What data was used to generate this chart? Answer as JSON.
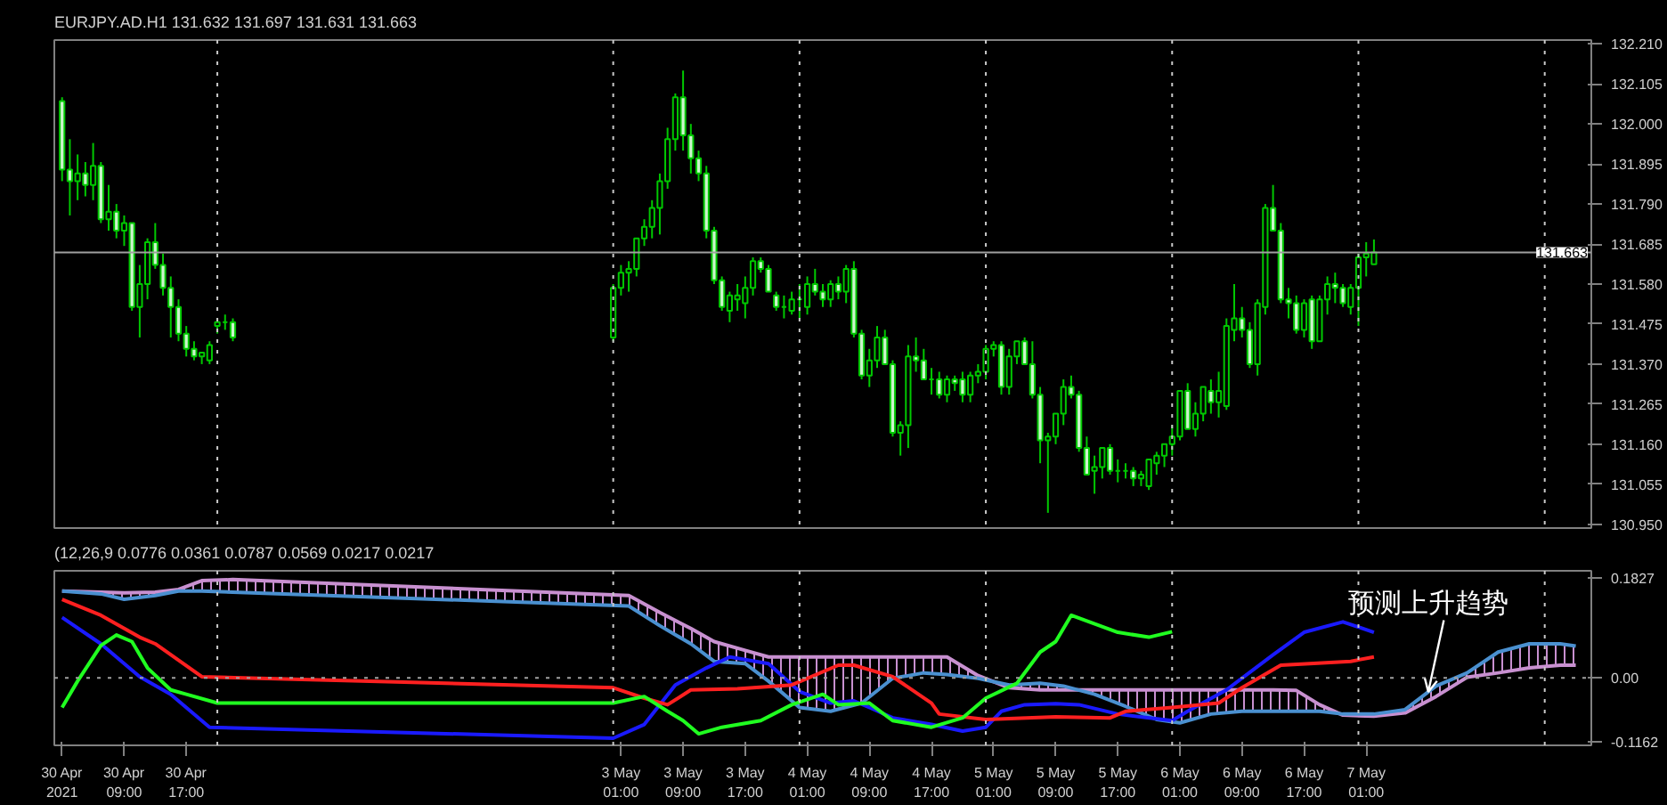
{
  "chart_data": [
    {
      "type": "candlestick",
      "title": "EURJPY.AD.H1 131.632 131.697 131.631 131.663",
      "color": "#00c800",
      "x": [
        "2021-04-30T01:00",
        "2021-04-30T02:00",
        "2021-04-30T03:00",
        "2021-04-30T04:00",
        "2021-04-30T05:00",
        "2021-04-30T06:00",
        "2021-04-30T07:00",
        "2021-04-30T08:00",
        "2021-04-30T09:00",
        "2021-04-30T10:00",
        "2021-04-30T11:00",
        "2021-04-30T12:00",
        "2021-04-30T13:00",
        "2021-04-30T14:00",
        "2021-04-30T15:00",
        "2021-04-30T16:00",
        "2021-04-30T17:00",
        "2021-04-30T18:00",
        "2021-04-30T19:00",
        "2021-04-30T20:00",
        "2021-04-30T21:00",
        "2021-04-30T22:00",
        "2021-04-30T23:00",
        "2021-05-03T00:00",
        "2021-05-03T01:00",
        "2021-05-03T02:00",
        "2021-05-03T03:00",
        "2021-05-03T04:00",
        "2021-05-03T05:00",
        "2021-05-03T06:00",
        "2021-05-03T07:00",
        "2021-05-03T08:00",
        "2021-05-03T09:00",
        "2021-05-03T10:00",
        "2021-05-03T11:00",
        "2021-05-03T12:00",
        "2021-05-03T13:00",
        "2021-05-03T14:00",
        "2021-05-03T15:00",
        "2021-05-03T16:00",
        "2021-05-03T17:00",
        "2021-05-03T18:00",
        "2021-05-03T19:00",
        "2021-05-03T20:00",
        "2021-05-03T21:00",
        "2021-05-03T22:00",
        "2021-05-03T23:00",
        "2021-05-04T00:00",
        "2021-05-04T01:00",
        "2021-05-04T02:00",
        "2021-05-04T03:00",
        "2021-05-04T04:00",
        "2021-05-04T05:00",
        "2021-05-04T06:00",
        "2021-05-04T07:00",
        "2021-05-04T08:00",
        "2021-05-04T09:00",
        "2021-05-04T10:00",
        "2021-05-04T11:00",
        "2021-05-04T12:00",
        "2021-05-04T13:00",
        "2021-05-04T14:00",
        "2021-05-04T15:00",
        "2021-05-04T16:00",
        "2021-05-04T17:00",
        "2021-05-04T18:00",
        "2021-05-04T19:00",
        "2021-05-04T20:00",
        "2021-05-04T21:00",
        "2021-05-04T22:00",
        "2021-05-04T23:00",
        "2021-05-05T00:00",
        "2021-05-05T01:00",
        "2021-05-05T02:00",
        "2021-05-05T03:00",
        "2021-05-05T04:00",
        "2021-05-05T05:00",
        "2021-05-05T06:00",
        "2021-05-05T07:00",
        "2021-05-05T08:00",
        "2021-05-05T09:00",
        "2021-05-05T10:00",
        "2021-05-05T11:00",
        "2021-05-05T12:00",
        "2021-05-05T13:00",
        "2021-05-05T14:00",
        "2021-05-05T15:00",
        "2021-05-05T16:00",
        "2021-05-05T17:00",
        "2021-05-05T18:00",
        "2021-05-05T19:00",
        "2021-05-05T20:00",
        "2021-05-05T21:00",
        "2021-05-05T22:00",
        "2021-05-05T23:00",
        "2021-05-06T00:00",
        "2021-05-06T01:00",
        "2021-05-06T02:00",
        "2021-05-06T03:00",
        "2021-05-06T04:00",
        "2021-05-06T05:00",
        "2021-05-06T06:00",
        "2021-05-06T07:00",
        "2021-05-06T08:00",
        "2021-05-06T09:00",
        "2021-05-06T10:00",
        "2021-05-06T11:00",
        "2021-05-06T12:00",
        "2021-05-06T13:00",
        "2021-05-06T14:00",
        "2021-05-06T15:00",
        "2021-05-06T16:00",
        "2021-05-06T17:00",
        "2021-05-06T18:00",
        "2021-05-06T19:00",
        "2021-05-06T20:00",
        "2021-05-06T21:00",
        "2021-05-06T22:00",
        "2021-05-06T23:00",
        "2021-05-07T00:00",
        "2021-05-07T01:00",
        "2021-05-07T02:00"
      ],
      "ohlc": [
        [
          132.06,
          132.07,
          131.85,
          131.88
        ],
        [
          131.88,
          131.96,
          131.76,
          131.85
        ],
        [
          131.85,
          131.92,
          131.8,
          131.87
        ],
        [
          131.87,
          131.9,
          131.81,
          131.84
        ],
        [
          131.84,
          131.95,
          131.8,
          131.89
        ],
        [
          131.89,
          131.9,
          131.74,
          131.75
        ],
        [
          131.75,
          131.84,
          131.72,
          131.77
        ],
        [
          131.77,
          131.79,
          131.7,
          131.72
        ],
        [
          131.72,
          131.76,
          131.68,
          131.74
        ],
        [
          131.74,
          131.74,
          131.51,
          131.52
        ],
        [
          131.52,
          131.63,
          131.44,
          131.58
        ],
        [
          131.58,
          131.7,
          131.54,
          131.69
        ],
        [
          131.69,
          131.74,
          131.62,
          131.63
        ],
        [
          131.63,
          131.66,
          131.55,
          131.57
        ],
        [
          131.57,
          131.6,
          131.44,
          131.52
        ],
        [
          131.52,
          131.54,
          131.43,
          131.45
        ],
        [
          131.45,
          131.47,
          131.39,
          131.41
        ],
        [
          131.41,
          131.43,
          131.38,
          131.39
        ],
        [
          131.39,
          131.4,
          131.37,
          131.4
        ],
        [
          131.38,
          131.43,
          131.37,
          131.42
        ],
        [
          131.47,
          131.49,
          131.45,
          131.48
        ],
        [
          131.48,
          131.5,
          131.46,
          131.48
        ],
        [
          131.48,
          131.49,
          131.43,
          131.44
        ],
        [
          131.44,
          131.58,
          131.43,
          131.57
        ],
        [
          131.57,
          131.63,
          131.55,
          131.61
        ],
        [
          131.61,
          131.64,
          131.56,
          131.62
        ],
        [
          131.62,
          131.7,
          131.6,
          131.7
        ],
        [
          131.7,
          131.75,
          131.68,
          131.73
        ],
        [
          131.73,
          131.8,
          131.7,
          131.78
        ],
        [
          131.78,
          131.87,
          131.71,
          131.85
        ],
        [
          131.85,
          131.99,
          131.83,
          131.96
        ],
        [
          131.96,
          132.08,
          131.93,
          132.07
        ],
        [
          132.07,
          132.14,
          131.93,
          131.97
        ],
        [
          131.97,
          132.0,
          131.87,
          131.91
        ],
        [
          131.91,
          131.93,
          131.85,
          131.87
        ],
        [
          131.87,
          131.89,
          131.7,
          131.72
        ],
        [
          131.72,
          131.73,
          131.58,
          131.59
        ],
        [
          131.59,
          131.6,
          131.51,
          131.52
        ],
        [
          131.51,
          131.56,
          131.48,
          131.55
        ],
        [
          131.54,
          131.58,
          131.51,
          131.55
        ],
        [
          131.53,
          131.6,
          131.49,
          131.57
        ],
        [
          131.57,
          131.65,
          131.55,
          131.64
        ],
        [
          131.64,
          131.65,
          131.61,
          131.62
        ],
        [
          131.62,
          131.63,
          131.56,
          131.56
        ],
        [
          131.55,
          131.56,
          131.51,
          131.52
        ],
        [
          131.52,
          131.55,
          131.49,
          131.52
        ],
        [
          131.51,
          131.56,
          131.5,
          131.54
        ],
        [
          131.54,
          131.58,
          131.49,
          131.54
        ],
        [
          131.52,
          131.6,
          131.5,
          131.58
        ],
        [
          131.58,
          131.62,
          131.55,
          131.56
        ],
        [
          131.56,
          131.58,
          131.52,
          131.54
        ],
        [
          131.54,
          131.59,
          131.52,
          131.58
        ],
        [
          131.58,
          131.6,
          131.54,
          131.56
        ],
        [
          131.56,
          131.63,
          131.53,
          131.62
        ],
        [
          131.62,
          131.64,
          131.44,
          131.45
        ],
        [
          131.45,
          131.46,
          131.33,
          131.34
        ],
        [
          131.34,
          131.41,
          131.31,
          131.38
        ],
        [
          131.38,
          131.47,
          131.36,
          131.44
        ],
        [
          131.44,
          131.46,
          131.37,
          131.37
        ],
        [
          131.37,
          131.38,
          131.18,
          131.19
        ],
        [
          131.19,
          131.22,
          131.13,
          131.21
        ],
        [
          131.21,
          131.42,
          131.15,
          131.39
        ],
        [
          131.39,
          131.44,
          131.35,
          131.38
        ],
        [
          131.38,
          131.41,
          131.33,
          131.33
        ],
        [
          131.33,
          131.36,
          131.29,
          131.33
        ],
        [
          131.33,
          131.35,
          131.28,
          131.29
        ],
        [
          131.29,
          131.34,
          131.27,
          131.33
        ],
        [
          131.33,
          131.34,
          131.3,
          131.32
        ],
        [
          131.33,
          131.35,
          131.27,
          131.29
        ],
        [
          131.29,
          131.35,
          131.27,
          131.34
        ],
        [
          131.34,
          131.37,
          131.32,
          131.35
        ],
        [
          131.35,
          131.42,
          131.33,
          131.41
        ],
        [
          131.41,
          131.43,
          131.39,
          131.42
        ],
        [
          131.42,
          131.43,
          131.29,
          131.31
        ],
        [
          131.31,
          131.41,
          131.29,
          131.39
        ],
        [
          131.39,
          131.43,
          131.37,
          131.43
        ],
        [
          131.43,
          131.44,
          131.37,
          131.37
        ],
        [
          131.37,
          131.43,
          131.28,
          131.29
        ],
        [
          131.29,
          131.31,
          131.11,
          131.17
        ],
        [
          131.17,
          131.19,
          130.98,
          131.18
        ],
        [
          131.18,
          131.24,
          131.16,
          131.24
        ],
        [
          131.24,
          131.33,
          131.21,
          131.31
        ],
        [
          131.31,
          131.34,
          131.28,
          131.29
        ],
        [
          131.29,
          131.3,
          131.14,
          131.15
        ],
        [
          131.15,
          131.18,
          131.08,
          131.08
        ],
        [
          131.09,
          131.13,
          131.03,
          131.1
        ],
        [
          131.1,
          131.15,
          131.07,
          131.15
        ],
        [
          131.15,
          131.16,
          131.08,
          131.09
        ],
        [
          131.09,
          131.12,
          131.06,
          131.09
        ],
        [
          131.09,
          131.11,
          131.07,
          131.09
        ],
        [
          131.09,
          131.1,
          131.05,
          131.07
        ],
        [
          131.07,
          131.09,
          131.05,
          131.08
        ],
        [
          131.05,
          131.12,
          131.04,
          131.12
        ],
        [
          131.11,
          131.14,
          131.08,
          131.13
        ],
        [
          131.13,
          131.16,
          131.1,
          131.16
        ],
        [
          131.16,
          131.21,
          131.13,
          131.18
        ],
        [
          131.18,
          131.3,
          131.17,
          131.3
        ],
        [
          131.3,
          131.32,
          131.2,
          131.2
        ],
        [
          131.2,
          131.27,
          131.18,
          131.24
        ],
        [
          131.24,
          131.31,
          131.22,
          131.31
        ],
        [
          131.3,
          131.33,
          131.24,
          131.27
        ],
        [
          131.27,
          131.35,
          131.23,
          131.3
        ],
        [
          131.26,
          131.49,
          131.25,
          131.47
        ],
        [
          131.46,
          131.58,
          131.43,
          131.49
        ],
        [
          131.49,
          131.52,
          131.44,
          131.46
        ],
        [
          131.46,
          131.48,
          131.36,
          131.37
        ],
        [
          131.37,
          131.54,
          131.34,
          131.53
        ],
        [
          131.52,
          131.79,
          131.5,
          131.78
        ],
        [
          131.78,
          131.84,
          131.72,
          131.72
        ],
        [
          131.72,
          131.74,
          131.53,
          131.54
        ],
        [
          131.54,
          131.57,
          131.49,
          131.53
        ],
        [
          131.53,
          131.55,
          131.45,
          131.46
        ],
        [
          131.46,
          131.54,
          131.44,
          131.53
        ],
        [
          131.54,
          131.55,
          131.41,
          131.43
        ],
        [
          131.43,
          131.55,
          131.43,
          131.54
        ],
        [
          131.54,
          131.6,
          131.5,
          131.58
        ],
        [
          131.58,
          131.61,
          131.53,
          131.57
        ],
        [
          131.57,
          131.58,
          131.52,
          131.53
        ],
        [
          131.52,
          131.58,
          131.5,
          131.57
        ],
        [
          131.57,
          131.66,
          131.47,
          131.65
        ],
        [
          131.65,
          131.69,
          131.6,
          131.66
        ],
        [
          131.632,
          131.697,
          131.631,
          131.663
        ]
      ],
      "xlim": [
        "2021-04-30T00:00",
        "2021-05-08T06:00"
      ],
      "ylim": [
        130.94,
        132.22
      ],
      "yticks": [
        {
          "value": 130.95,
          "label": "130.950"
        },
        {
          "value": 131.055,
          "label": "131.055"
        },
        {
          "value": 131.16,
          "label": "131.160"
        },
        {
          "value": 131.265,
          "label": "131.265"
        },
        {
          "value": 131.37,
          "label": "131.370"
        },
        {
          "value": 131.475,
          "label": "131.475"
        },
        {
          "value": 131.58,
          "label": "131.580"
        },
        {
          "value": 131.685,
          "label": "131.685"
        },
        {
          "value": 131.79,
          "label": "131.790"
        },
        {
          "value": 131.895,
          "label": "131.895"
        },
        {
          "value": 132.0,
          "label": "132.000"
        },
        {
          "value": 132.105,
          "label": "132.105"
        },
        {
          "value": 132.21,
          "label": "132.210"
        }
      ],
      "tick_labels": "y",
      "ref_lines": [
        {
          "axis": "y",
          "value": 131.663,
          "label": "131.663",
          "color": "#a0a0a0",
          "line_style": "solid"
        },
        {
          "axis": "x",
          "value": "2021-04-30T21:00",
          "color": "#c8c8c8",
          "line_style": "dotted"
        },
        {
          "axis": "x",
          "value": "2021-05-03T00:00",
          "color": "#c8c8c8",
          "line_style": "dotted"
        },
        {
          "axis": "x",
          "value": "2021-05-04T00:00",
          "color": "#c8c8c8",
          "line_style": "dotted"
        },
        {
          "axis": "x",
          "value": "2021-05-05T00:00",
          "color": "#c8c8c8",
          "line_style": "dotted"
        },
        {
          "axis": "x",
          "value": "2021-05-06T00:00",
          "color": "#c8c8c8",
          "line_style": "dotted"
        },
        {
          "axis": "x",
          "value": "2021-05-07T00:00",
          "color": "#c8c8c8",
          "line_style": "dotted"
        },
        {
          "axis": "x",
          "value": "2021-05-08T00:00",
          "color": "#c8c8c8",
          "line_style": "dotted"
        }
      ]
    },
    {
      "type": "line",
      "annotations": [
        {
          "text": "预测上升趋势",
          "x": "2021-05-07T09:00",
          "y": -0.035
        }
      ],
      "title": "(12,26,9 0.0776 0.0361 0.0787 0.0569 0.0217 0.0217",
      "xlim": [
        "2021-04-30T00:00",
        "2021-05-08T06:00"
      ],
      "ylim": [
        -0.123,
        0.195
      ],
      "xticks": [
        {
          "value": "2021-04-30T01:00",
          "label": "30 Apr 2021"
        },
        {
          "value": "2021-04-30T09:00",
          "label": "30 Apr 09:00"
        },
        {
          "value": "2021-04-30T17:00",
          "label": "30 Apr 17:00"
        },
        {
          "value": "2021-05-03T01:00",
          "label": "3 May 01:00"
        },
        {
          "value": "2021-05-03T09:00",
          "label": "3 May 09:00"
        },
        {
          "value": "2021-05-03T17:00",
          "label": "3 May 17:00"
        },
        {
          "value": "2021-05-04T01:00",
          "label": "4 May 01:00"
        },
        {
          "value": "2021-05-04T09:00",
          "label": "4 May 09:00"
        },
        {
          "value": "2021-05-04T17:00",
          "label": "4 May 17:00"
        },
        {
          "value": "2021-05-05T01:00",
          "label": "5 May 01:00"
        },
        {
          "value": "2021-05-05T09:00",
          "label": "5 May 09:00"
        },
        {
          "value": "2021-05-05T17:00",
          "label": "5 May 17:00"
        },
        {
          "value": "2021-05-06T01:00",
          "label": "6 May 01:00"
        },
        {
          "value": "2021-05-06T09:00",
          "label": "6 May 09:00"
        },
        {
          "value": "2021-05-06T17:00",
          "label": "6 May 17:00"
        },
        {
          "value": "2021-05-07T01:00",
          "label": "7 May 01:00"
        }
      ],
      "yticks": [
        {
          "value": 0.1827,
          "label": "0.1827"
        },
        {
          "value": 0,
          "label": "0.00"
        },
        {
          "value": -0.1162,
          "label": "-0.1162"
        }
      ],
      "ref_lines": [
        {
          "axis": "y",
          "value": 0,
          "color": "#a0a0a0",
          "line_style": "dotted"
        },
        {
          "axis": "x",
          "value": "2021-04-30T21:00",
          "color": "#c8c8c8",
          "line_style": "dotted"
        },
        {
          "axis": "x",
          "value": "2021-05-03T00:00",
          "color": "#c8c8c8",
          "line_style": "dotted"
        },
        {
          "axis": "x",
          "value": "2021-05-04T00:00",
          "color": "#c8c8c8",
          "line_style": "dotted"
        },
        {
          "axis": "x",
          "value": "2021-05-05T00:00",
          "color": "#c8c8c8",
          "line_style": "dotted"
        },
        {
          "axis": "x",
          "value": "2021-05-06T00:00",
          "color": "#c8c8c8",
          "line_style": "dotted"
        },
        {
          "axis": "x",
          "value": "2021-05-07T00:00",
          "color": "#c8c8c8",
          "line_style": "dotted"
        },
        {
          "axis": "x",
          "value": "2021-05-08T00:00",
          "color": "#c8c8c8",
          "line_style": "dotted"
        }
      ],
      "series": [
        {
          "type": "line",
          "color": "#c890d0",
          "x": [
            "2021-04-30T01:00",
            "2021-04-30T06:00",
            "2021-04-30T09:00",
            "2021-04-30T13:00",
            "2021-04-30T16:00",
            "2021-04-30T19:00",
            "2021-04-30T23:00",
            "2021-05-03T02:00",
            "2021-05-03T06:00",
            "2021-05-03T10:00",
            "2021-05-03T13:00",
            "2021-05-03T17:00",
            "2021-05-03T20:00",
            "2021-05-04T00:00",
            "2021-05-04T04:00",
            "2021-05-04T08:00",
            "2021-05-04T12:00",
            "2021-05-04T16:00",
            "2021-05-04T19:00",
            "2021-05-04T23:00",
            "2021-05-05T03:00",
            "2021-05-05T07:00",
            "2021-05-05T10:00",
            "2021-05-05T14:00",
            "2021-05-05T18:00",
            "2021-05-05T22:00",
            "2021-05-06T01:00",
            "2021-05-06T05:00",
            "2021-05-06T09:00",
            "2021-05-06T13:00",
            "2021-05-06T16:00",
            "2021-05-06T19:00",
            "2021-05-06T22:00",
            "2021-05-07T02:00",
            "2021-05-07T06:00",
            "2021-05-07T10:00",
            "2021-05-07T14:00",
            "2021-05-07T18:00",
            "2021-05-07T22:00",
            "2021-05-08T02:00",
            "2021-05-08T04:00"
          ],
          "values": [
            0.158,
            0.156,
            0.155,
            0.156,
            0.161,
            0.177,
            0.179,
            0.15,
            0.119,
            0.09,
            0.066,
            0.05,
            0.038,
            0.038,
            0.038,
            0.038,
            0.038,
            0.038,
            0.038,
            0.004,
            -0.018,
            -0.022,
            -0.022,
            -0.022,
            -0.022,
            -0.022,
            -0.022,
            -0.022,
            -0.022,
            -0.022,
            -0.023,
            -0.049,
            -0.068,
            -0.07,
            -0.064,
            -0.034,
            0.001,
            0.009,
            0.018,
            0.023,
            0.023
          ],
          "lower": [
            0.158,
            0.153,
            0.143,
            0.15,
            0.158,
            0.158,
            0.156,
            0.131,
            0.095,
            0.062,
            0.03,
            0.026,
            -0.006,
            -0.054,
            -0.061,
            -0.046,
            -0.001,
            0.009,
            0.006,
            -0.001,
            -0.013,
            -0.01,
            -0.015,
            -0.03,
            -0.052,
            -0.076,
            -0.082,
            -0.066,
            -0.061,
            -0.061,
            -0.061,
            -0.061,
            -0.066,
            -0.066,
            -0.058,
            -0.015,
            0.009,
            0.047,
            0.062,
            0.062,
            0.058
          ],
          "upper": [
            0.158,
            0.156,
            0.155,
            0.156,
            0.161,
            0.177,
            0.179,
            0.15,
            0.119,
            0.09,
            0.066,
            0.05,
            0.038,
            0.038,
            0.038,
            0.038,
            0.038,
            0.038,
            0.038,
            0.004,
            -0.018,
            -0.022,
            -0.022,
            -0.022,
            -0.022,
            -0.022,
            -0.022,
            -0.022,
            -0.022,
            -0.022,
            -0.023,
            -0.049,
            -0.068,
            -0.07,
            -0.064,
            -0.034,
            0.001,
            0.009,
            0.018,
            0.023,
            0.023
          ]
        },
        {
          "type": "line",
          "color": "#4a90d0",
          "x": [
            "2021-04-30T01:00",
            "2021-04-30T06:00",
            "2021-04-30T09:00",
            "2021-04-30T13:00",
            "2021-04-30T16:00",
            "2021-04-30T19:00",
            "2021-04-30T23:00",
            "2021-05-03T02:00",
            "2021-05-03T06:00",
            "2021-05-03T10:00",
            "2021-05-03T13:00",
            "2021-05-03T17:00",
            "2021-05-03T20:00",
            "2021-05-04T00:00",
            "2021-05-04T04:00",
            "2021-05-04T08:00",
            "2021-05-04T12:00",
            "2021-05-04T16:00",
            "2021-05-04T19:00",
            "2021-05-04T23:00",
            "2021-05-05T03:00",
            "2021-05-05T07:00",
            "2021-05-05T10:00",
            "2021-05-05T14:00",
            "2021-05-05T18:00",
            "2021-05-05T22:00",
            "2021-05-06T01:00",
            "2021-05-06T05:00",
            "2021-05-06T09:00",
            "2021-05-06T13:00",
            "2021-05-06T16:00",
            "2021-05-06T19:00",
            "2021-05-06T22:00",
            "2021-05-07T02:00",
            "2021-05-07T06:00",
            "2021-05-07T10:00",
            "2021-05-07T14:00",
            "2021-05-07T18:00",
            "2021-05-07T22:00",
            "2021-05-08T02:00",
            "2021-05-08T04:00"
          ],
          "values": [
            0.158,
            0.153,
            0.143,
            0.15,
            0.158,
            0.158,
            0.156,
            0.131,
            0.095,
            0.062,
            0.03,
            0.026,
            -0.006,
            -0.054,
            -0.061,
            -0.046,
            -0.001,
            0.009,
            0.006,
            -0.001,
            -0.013,
            -0.01,
            -0.015,
            -0.03,
            -0.052,
            -0.076,
            -0.082,
            -0.066,
            -0.061,
            -0.061,
            -0.061,
            -0.061,
            -0.066,
            -0.066,
            -0.058,
            -0.015,
            0.009,
            0.047,
            0.062,
            0.062,
            0.058
          ]
        },
        {
          "type": "line",
          "color": "#1a1aff",
          "x": [
            "2021-04-30T01:00",
            "2021-04-30T06:00",
            "2021-04-30T11:00",
            "2021-04-30T15:00",
            "2021-04-30T20:00",
            "2021-05-03T00:00",
            "2021-05-03T04:00",
            "2021-05-03T08:00",
            "2021-05-03T12:00",
            "2021-05-03T15:00",
            "2021-05-03T20:00",
            "2021-05-04T00:00",
            "2021-05-04T04:00",
            "2021-05-04T07:00",
            "2021-05-04T09:00",
            "2021-05-04T12:00",
            "2021-05-04T17:00",
            "2021-05-04T21:00",
            "2021-05-05T00:00",
            "2021-05-05T02:00",
            "2021-05-05T05:00",
            "2021-05-05T09:00",
            "2021-05-05T12:00",
            "2021-05-05T17:00",
            "2021-05-06T00:00",
            "2021-05-06T02:00",
            "2021-05-06T07:00",
            "2021-05-06T13:00",
            "2021-05-06T17:00",
            "2021-05-06T22:00",
            "2021-05-07T02:00"
          ],
          "values": [
            0.11,
            0.062,
            0.002,
            -0.03,
            -0.09,
            -0.11,
            -0.085,
            -0.013,
            0.018,
            0.038,
            0.026,
            -0.025,
            -0.046,
            -0.042,
            -0.054,
            -0.073,
            -0.085,
            -0.097,
            -0.09,
            -0.061,
            -0.049,
            -0.047,
            -0.049,
            -0.066,
            -0.078,
            -0.061,
            -0.022,
            0.042,
            0.083,
            0.102,
            0.083
          ]
        },
        {
          "type": "line",
          "color": "#ff2020",
          "x": [
            "2021-04-30T01:00",
            "2021-04-30T06:00",
            "2021-04-30T11:00",
            "2021-04-30T13:00",
            "2021-04-30T19:00",
            "2021-05-03T00:00",
            "2021-05-03T04:00",
            "2021-05-03T07:00",
            "2021-05-03T10:00",
            "2021-05-03T16:00",
            "2021-05-03T23:00",
            "2021-05-04T05:00",
            "2021-05-04T07:00",
            "2021-05-04T12:00",
            "2021-05-04T17:00",
            "2021-05-04T18:00",
            "2021-05-05T00:00",
            "2021-05-05T09:00",
            "2021-05-05T16:00",
            "2021-05-05T18:00",
            "2021-05-06T00:00",
            "2021-05-06T06:00",
            "2021-05-06T09:00",
            "2021-05-06T14:00",
            "2021-05-06T23:00",
            "2021-05-07T02:00"
          ],
          "values": [
            0.143,
            0.114,
            0.074,
            0.062,
            0.002,
            -0.018,
            -0.037,
            -0.049,
            -0.022,
            -0.02,
            -0.013,
            0.023,
            0.023,
            0.002,
            -0.046,
            -0.066,
            -0.076,
            -0.071,
            -0.073,
            -0.061,
            -0.054,
            -0.046,
            -0.018,
            0.023,
            0.03,
            0.038
          ]
        },
        {
          "type": "line",
          "color": "#20ff20",
          "x": [
            "2021-04-30T01:00",
            "2021-04-30T03:00",
            "2021-04-30T06:00",
            "2021-04-30T08:00",
            "2021-04-30T10:00",
            "2021-04-30T12:00",
            "2021-04-30T15:00",
            "2021-04-30T17:00",
            "2021-04-30T21:00",
            "2021-05-03T00:00",
            "2021-05-03T04:00",
            "2021-05-03T07:00",
            "2021-05-03T09:00",
            "2021-05-03T11:00",
            "2021-05-03T14:00",
            "2021-05-03T19:00",
            "2021-05-03T23:00",
            "2021-05-04T03:00",
            "2021-05-04T05:00",
            "2021-05-04T09:00",
            "2021-05-04T12:00",
            "2021-05-04T17:00",
            "2021-05-04T21:00",
            "2021-05-05T00:00",
            "2021-05-05T04:00",
            "2021-05-05T07:00",
            "2021-05-05T09:00",
            "2021-05-05T11:00",
            "2021-05-05T17:00",
            "2021-05-05T21:00",
            "2021-05-06T00:00"
          ],
          "values": [
            -0.054,
            -0.006,
            0.059,
            0.078,
            0.066,
            0.018,
            -0.022,
            -0.03,
            -0.046,
            -0.046,
            -0.034,
            -0.061,
            -0.078,
            -0.102,
            -0.09,
            -0.078,
            -0.049,
            -0.03,
            -0.049,
            -0.046,
            -0.078,
            -0.09,
            -0.073,
            -0.037,
            -0.01,
            0.047,
            0.066,
            0.114,
            0.083,
            0.074,
            0.084
          ]
        }
      ]
    }
  ]
}
